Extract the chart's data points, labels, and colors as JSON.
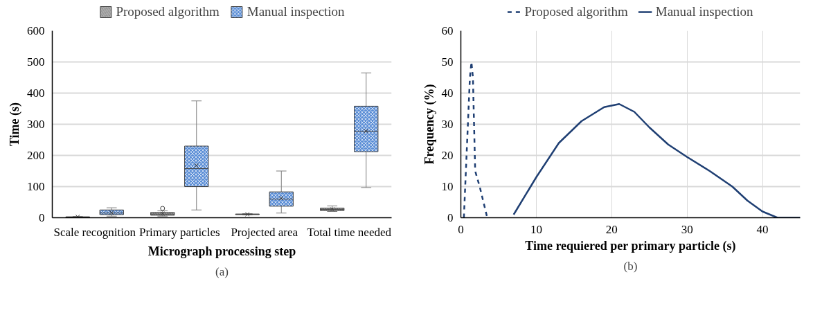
{
  "chart_data": [
    {
      "type": "box",
      "categories": [
        "Scale recognition",
        "Primary particles",
        "Projected area",
        "Total time needed"
      ],
      "xlabel": "Micrograph processing step",
      "ylabel": "Time (s)",
      "ylim": [
        0,
        600
      ],
      "yticks": [
        0,
        100,
        200,
        300,
        400,
        500,
        600
      ],
      "grid": "y",
      "legend": "top",
      "annotations": [
        "(a)"
      ],
      "series": [
        {
          "name": "Proposed algorithm",
          "color": "#808080",
          "boxes": [
            {
              "low": 1,
              "q1": 1,
              "median": 2,
              "q3": 3,
              "high": 4,
              "mean": 3
            },
            {
              "low": 5,
              "q1": 8,
              "median": 12,
              "q3": 17,
              "high": 22,
              "mean": 13,
              "outliers": [
                30
              ]
            },
            {
              "low": 9,
              "q1": 10,
              "median": 11,
              "q3": 12,
              "high": 13,
              "mean": 11
            },
            {
              "low": 20,
              "q1": 23,
              "median": 27,
              "q3": 31,
              "high": 38,
              "mean": 27
            }
          ]
        },
        {
          "name": "Manual inspection",
          "color": "#5b8ed6",
          "boxes": [
            {
              "low": 5,
              "q1": 10,
              "median": 15,
              "q3": 25,
              "high": 32,
              "mean": 16
            },
            {
              "low": 25,
              "q1": 100,
              "median": 158,
              "q3": 230,
              "high": 375,
              "mean": 168
            },
            {
              "low": 15,
              "q1": 37,
              "median": 60,
              "q3": 83,
              "high": 150,
              "mean": 63
            },
            {
              "low": 97,
              "q1": 212,
              "median": 278,
              "q3": 358,
              "high": 465,
              "mean": 278
            }
          ]
        }
      ]
    },
    {
      "type": "line",
      "xlabel": "Time requiered per primary particle (s)",
      "ylabel": "Frequency (%)",
      "xlim": [
        0,
        45
      ],
      "xticks": [
        0,
        10,
        20,
        30,
        40
      ],
      "ylim": [
        0,
        60
      ],
      "yticks": [
        0,
        10,
        20,
        30,
        40,
        50,
        60
      ],
      "grid": true,
      "legend": "top",
      "annotations": [
        "(b)"
      ],
      "series": [
        {
          "name": "Proposed algorithm",
          "color": "#1f3f73",
          "line_style": "dashed",
          "x": [
            0.4,
            1.2,
            1.4,
            1.6,
            1.9,
            2.5,
            3.5
          ],
          "values": [
            0,
            45,
            50,
            45,
            15,
            10,
            0
          ]
        },
        {
          "name": "Manual inspection",
          "color": "#1f3f73",
          "line_style": "solid",
          "x": [
            7,
            10,
            13,
            16,
            19,
            21,
            23,
            25,
            27.5,
            30,
            33,
            36,
            38,
            40,
            42,
            45
          ],
          "values": [
            1,
            13,
            24,
            31,
            35.5,
            36.5,
            34,
            29,
            23.5,
            19.5,
            15,
            10,
            5.5,
            2,
            0,
            0
          ]
        }
      ]
    }
  ]
}
